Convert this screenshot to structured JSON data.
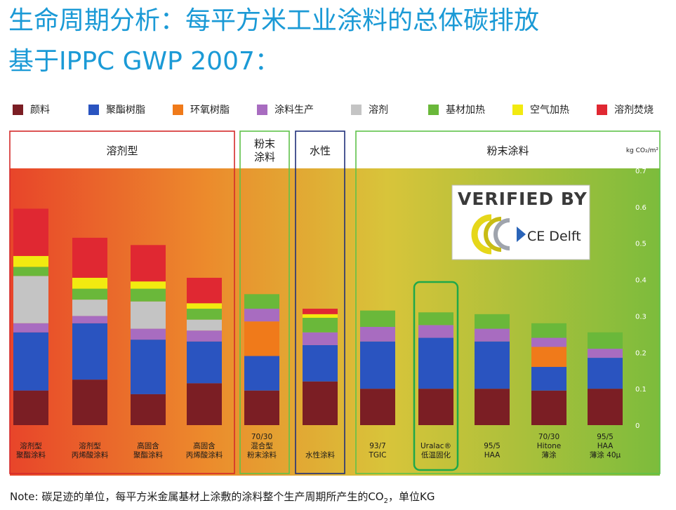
{
  "title_line1": "生命周期分析：每平方米工业涂料的总体碳排放",
  "title_line2": "基于IPPC GWP 2007：",
  "note": {
    "text_before": "Note: 碳足迹的单位，每平方米金属基材上涂敷的涂料整个生产周期所产生的CO",
    "sub": "2",
    "text_after": "，单位KG"
  },
  "badge": {
    "line1": "VERIFIED BY",
    "line2": "CE Delft"
  },
  "chart_data": {
    "type": "bar",
    "stacked": true,
    "unit_label": "kg CO₂/m²",
    "ylim": [
      0,
      0.7
    ],
    "yticks": [
      "0",
      "0.1",
      "0.2",
      "0.3",
      "0.4",
      "0.5",
      "0.6",
      "0.7"
    ],
    "groups": [
      {
        "label": "溶剂型",
        "color": "#d42a2a",
        "start": 0,
        "end": 3
      },
      {
        "label": "粉末\n涂料",
        "color": "#5fc24a",
        "start": 4,
        "end": 4
      },
      {
        "label": "水性",
        "color": "#1f2f7a",
        "start": 5,
        "end": 5
      },
      {
        "label": "粉末涂料",
        "color": "#5fc24a",
        "start": 6,
        "end": 10
      }
    ],
    "categories": [
      "溶剂型\n聚酯涂料",
      "溶剂型\n丙烯酸涂料",
      "高固含\n聚酯涂料",
      "高固含\n丙烯酸涂料",
      "70/30\n混合型\n粉末涂料",
      "水性涂料",
      "93/7\nTGIC",
      "Uralac®\n低温固化",
      "95/5\nHAA",
      "70/30\nHitone\n薄涂",
      "95/5\nHAA\n薄涂 40μ"
    ],
    "highlight_index": 7,
    "series": [
      {
        "name": "颜料",
        "color": "#7b1e24",
        "values": [
          0.095,
          0.125,
          0.085,
          0.115,
          0.095,
          0.12,
          0.1,
          0.1,
          0.1,
          0.095,
          0.1
        ]
      },
      {
        "name": "聚酯树脂",
        "color": "#2a54c0",
        "values": [
          0.16,
          0.155,
          0.15,
          0.115,
          0.095,
          0.1,
          0.13,
          0.14,
          0.13,
          0.065,
          0.085
        ]
      },
      {
        "name": "环氧树脂",
        "color": "#f07a1a",
        "values": [
          0,
          0,
          0,
          0,
          0.095,
          0,
          0,
          0,
          0,
          0.055,
          0
        ]
      },
      {
        "name": "涂料生产",
        "color": "#a86cc0",
        "values": [
          0.025,
          0.02,
          0.03,
          0.03,
          0.035,
          0.035,
          0.04,
          0.035,
          0.035,
          0.025,
          0.025
        ]
      },
      {
        "name": "溶剂",
        "color": "#c4c4c4",
        "values": [
          0.13,
          0.045,
          0.075,
          0.03,
          0,
          0,
          0,
          0,
          0,
          0,
          0
        ]
      },
      {
        "name": "基材加热",
        "color": "#6ab83a",
        "values": [
          0.025,
          0.03,
          0.035,
          0.03,
          0.04,
          0.04,
          0.045,
          0.035,
          0.04,
          0.04,
          0.045
        ]
      },
      {
        "name": "空气加热",
        "color": "#f2ea10",
        "values": [
          0.03,
          0.03,
          0.02,
          0.015,
          0,
          0.01,
          0,
          0,
          0,
          0,
          0
        ]
      },
      {
        "name": "溶剂焚烧",
        "color": "#e02832",
        "values": [
          0.13,
          0.11,
          0.1,
          0.07,
          0,
          0.015,
          0,
          0,
          0,
          0,
          0
        ]
      }
    ]
  }
}
